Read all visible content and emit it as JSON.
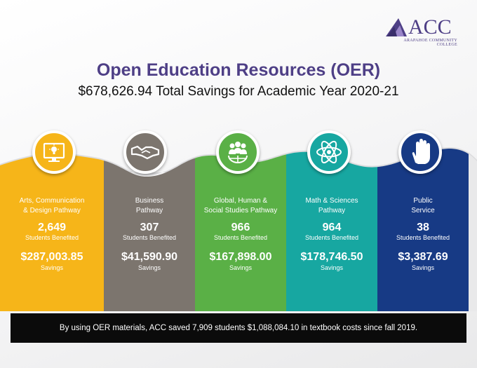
{
  "logo": {
    "acc": "ACC",
    "college": "ARAPAHOE COMMUNITY COLLEGE"
  },
  "title": "Open Education Resources (OER)",
  "subtitle": "$678,626.94 Total Savings for Academic Year 2020-21",
  "pathways": [
    {
      "name_line1": "Arts, Communication",
      "name_line2": "& Design Pathway",
      "students": "2,649",
      "students_label": "Students Benefited",
      "savings": "$287,003.85",
      "savings_label": "Savings",
      "color": "#f6b519",
      "icon": "computer-lightbulb-icon"
    },
    {
      "name_line1": "Business",
      "name_line2": "Pathway",
      "students": "307",
      "students_label": "Students Benefited",
      "savings": "$41,590.90",
      "savings_label": "Savings",
      "color": "#7c756e",
      "icon": "handshake-icon"
    },
    {
      "name_line1": "Global, Human &",
      "name_line2": "Social Studies Pathway",
      "students": "966",
      "students_label": "Students Benefited",
      "savings": "$167,898.00",
      "savings_label": "Savings",
      "color": "#5ab046",
      "icon": "globe-people-icon"
    },
    {
      "name_line1": "Math & Sciences",
      "name_line2": "Pathway",
      "students": "964",
      "students_label": "Students Benefited",
      "savings": "$178,746.50",
      "savings_label": "Savings",
      "color": "#17a7a1",
      "icon": "atom-icon"
    },
    {
      "name_line1": "Public",
      "name_line2": "Service",
      "students": "38",
      "students_label": "Students Benefited",
      "savings": "$3,387.69",
      "savings_label": "Savings",
      "color": "#173a85",
      "icon": "hand-icon"
    }
  ],
  "footer": "By using OER materials, ACC saved 7,909 students $1,088,084.10 in textbook costs since fall 2019."
}
